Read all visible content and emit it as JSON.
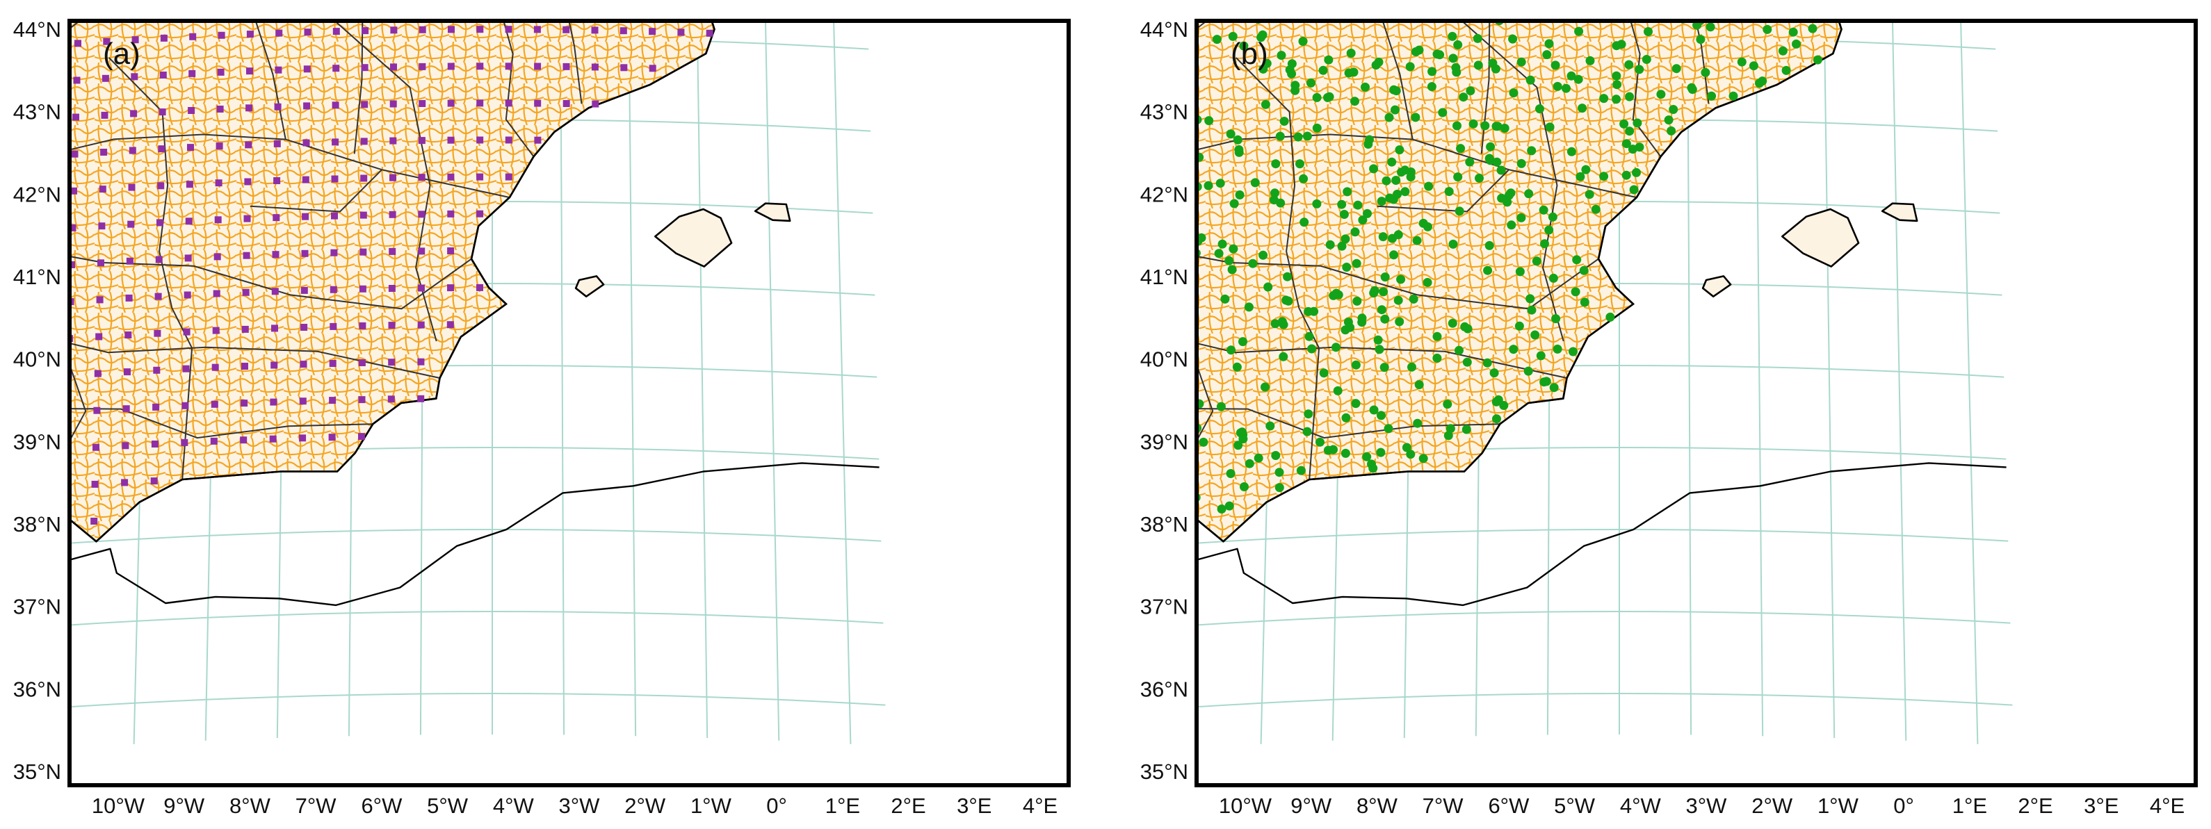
{
  "figure": {
    "panels": [
      {
        "id": "a",
        "label": "(a)",
        "marker_color": "#8e2fa8",
        "marker_shape": "square"
      },
      {
        "id": "b",
        "label": "(b)",
        "marker_color": "#13a31a",
        "marker_shape": "circle"
      }
    ],
    "lat_labels": [
      "44°N",
      "43°N",
      "42°N",
      "41°N",
      "40°N",
      "39°N",
      "38°N",
      "37°N",
      "36°N",
      "35°N"
    ],
    "lon_labels": [
      "10°W",
      "9°W",
      "8°W",
      "7°W",
      "6°W",
      "5°W",
      "4°W",
      "3°W",
      "2°W",
      "1°W",
      "0°",
      "1°E",
      "2°E",
      "3°E",
      "4°E"
    ],
    "colors": {
      "land_fill": "#fdf3e3",
      "municipal_boundaries": "#f4a622",
      "provincial_boundaries": "#333333",
      "coastline": "#000000",
      "graticule": "#a8d8cc"
    }
  }
}
